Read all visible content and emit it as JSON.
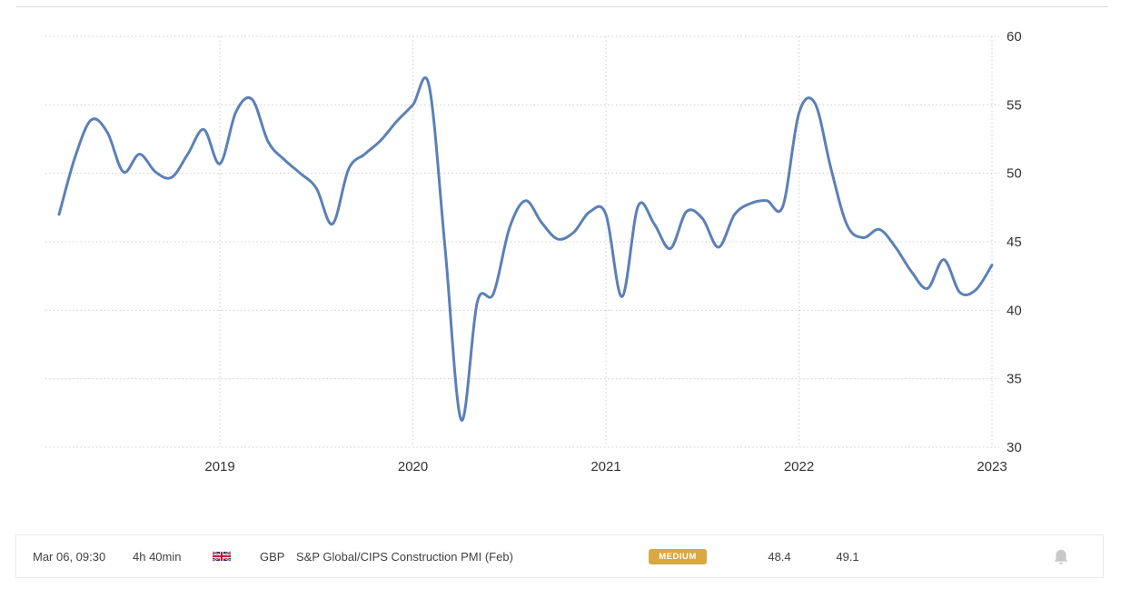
{
  "chart_data": {
    "type": "line",
    "x": [
      "2018-03",
      "2018-04",
      "2018-05",
      "2018-06",
      "2018-07",
      "2018-08",
      "2018-09",
      "2018-10",
      "2018-11",
      "2018-12",
      "2019-01",
      "2019-02",
      "2019-03",
      "2019-04",
      "2019-05",
      "2019-06",
      "2019-07",
      "2019-08",
      "2019-09",
      "2019-10",
      "2019-11",
      "2019-12",
      "2020-01",
      "2020-02",
      "2020-03",
      "2020-04",
      "2020-05",
      "2020-06",
      "2020-07",
      "2020-08",
      "2020-09",
      "2020-10",
      "2020-11",
      "2020-12",
      "2021-01",
      "2021-02",
      "2021-03",
      "2021-04",
      "2021-05",
      "2021-06",
      "2021-07",
      "2021-08",
      "2021-09",
      "2021-10",
      "2021-11",
      "2021-12",
      "2022-01",
      "2022-02",
      "2022-03",
      "2022-04",
      "2022-05",
      "2022-06",
      "2022-07",
      "2022-08",
      "2022-09",
      "2022-10",
      "2022-11",
      "2022-12",
      "2023-01"
    ],
    "values": [
      47.0,
      51.2,
      53.9,
      53.0,
      50.1,
      51.4,
      50.1,
      49.7,
      51.4,
      53.2,
      50.7,
      54.5,
      55.4,
      52.3,
      51.0,
      50.0,
      48.9,
      46.3,
      50.3,
      51.4,
      52.4,
      53.8,
      55.0,
      56.4,
      44.5,
      32.0,
      40.6,
      41.2,
      46.0,
      48.0,
      46.4,
      45.2,
      45.7,
      47.2,
      47.0,
      41.0,
      47.6,
      46.3,
      44.5,
      47.2,
      46.7,
      44.6,
      47.0,
      47.8,
      48.0,
      47.6,
      54.4,
      55.1,
      50.3,
      46.2,
      45.3,
      45.9,
      44.6,
      42.8,
      41.6,
      43.7,
      41.3,
      41.5,
      43.3
    ],
    "ylim": [
      30,
      60
    ],
    "yticks": [
      60,
      55,
      50,
      45,
      40,
      35,
      30
    ],
    "xticks": [
      "2019",
      "2020",
      "2021",
      "2022",
      "2023"
    ],
    "grid": "dotted",
    "legend": "none",
    "title": "",
    "xlabel": "",
    "ylabel": "",
    "line_color": "#5b80b7",
    "grid_color": "#cccccc",
    "tick_color": "#333333"
  },
  "event_row": {
    "date": "Mar 06, 09:30",
    "time_until": "4h 40min",
    "flag": "uk-flag",
    "currency": "GBP",
    "title": "S&P Global/CIPS Construction PMI (Feb)",
    "importance": "MEDIUM",
    "importance_color": "#d9a843",
    "value_1": "48.4",
    "value_2": "49.1",
    "bell_icon": "bell-icon"
  }
}
